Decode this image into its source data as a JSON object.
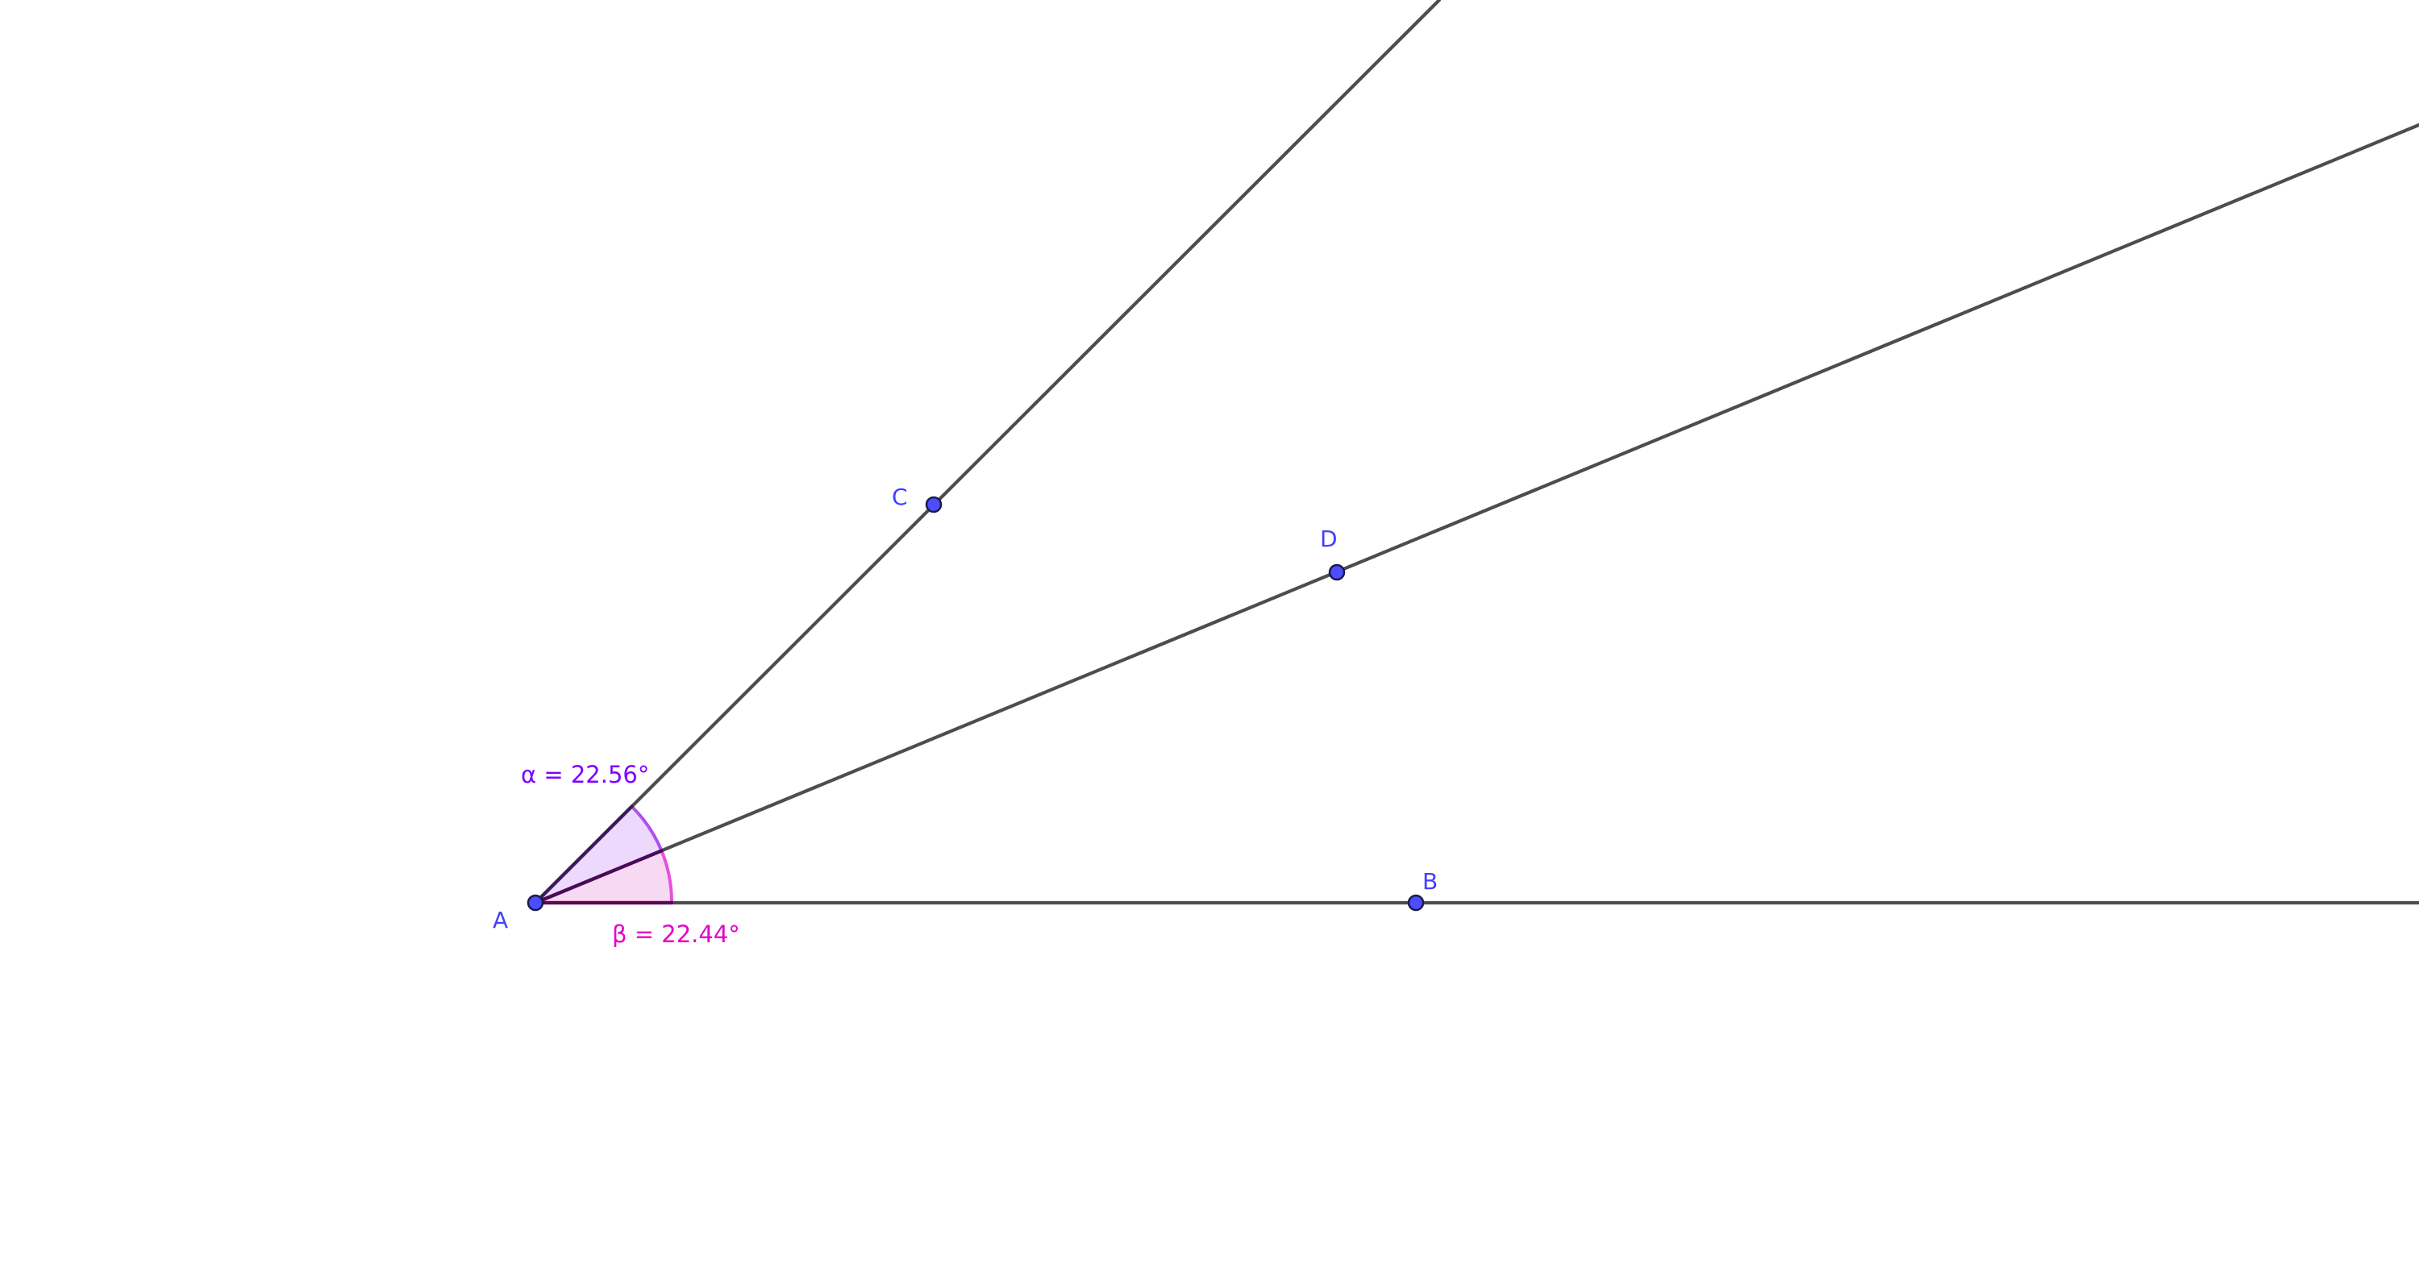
{
  "points": {
    "A": {
      "label": "A"
    },
    "B": {
      "label": "B"
    },
    "C": {
      "label": "C"
    },
    "D": {
      "label": "D"
    }
  },
  "angles": {
    "alpha": {
      "label": "α = 22.56°",
      "value_deg": 22.56,
      "color": "#7f00ff"
    },
    "beta": {
      "label": "β = 22.44°",
      "value_deg": 22.44,
      "color": "#e600c8"
    }
  },
  "colors": {
    "point_fill": "#4d4dff",
    "point_label": "#4040ff",
    "line": "#4d4d4d",
    "alpha_fill": "#ecd9fb",
    "beta_fill": "#f7d9f3"
  }
}
